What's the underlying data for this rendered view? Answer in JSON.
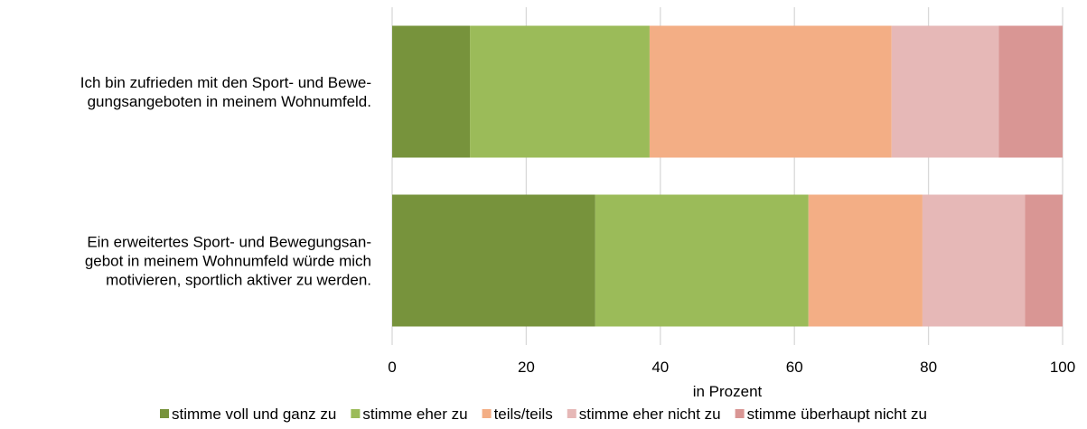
{
  "chart_data": {
    "type": "bar",
    "orientation": "horizontal",
    "stacked": true,
    "title": "",
    "xlabel": "in Prozent",
    "ylabel": "",
    "xlim": [
      0,
      100
    ],
    "xticks": [
      0,
      20,
      40,
      60,
      80,
      100
    ],
    "grid": true,
    "legend_position": "bottom",
    "categories": [
      [
        "Ich bin zufrieden mit den Sport- und Bewe-",
        "gungsangeboten in meinem Wohnumfeld."
      ],
      [
        "Ein erweitertes Sport- und Bewegungsan-",
        "gebot in meinem Wohnumfeld würde mich",
        "motivieren, sportlich aktiver zu werden."
      ]
    ],
    "series": [
      {
        "name": "stimme voll und ganz zu",
        "color": "#77933c",
        "values": [
          11.6,
          30.3
        ]
      },
      {
        "name": "stimme eher zu",
        "color": "#9bbb59",
        "values": [
          26.8,
          31.8
        ]
      },
      {
        "name": "teils/teils",
        "color": "#f3ae85",
        "values": [
          36.1,
          17.0
        ]
      },
      {
        "name": "stimme eher nicht zu",
        "color": "#e6b8b7",
        "values": [
          16.0,
          15.3
        ]
      },
      {
        "name": "stimme überhaupt nicht zu",
        "color": "#d99694",
        "values": [
          9.5,
          5.6
        ]
      }
    ]
  }
}
